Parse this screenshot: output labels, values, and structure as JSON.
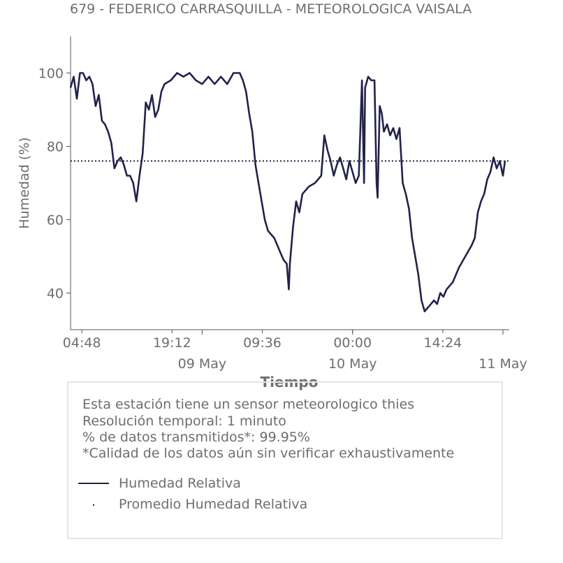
{
  "chart_data": {
    "type": "line",
    "title": "679 - FEDERICO CARRASQUILLA - METEOROLOGICA VAISALA",
    "xlabel": "Tiempo",
    "ylabel": "Humedad (%)",
    "ylim": [
      30,
      110
    ],
    "yticks": [
      40,
      60,
      80,
      100
    ],
    "x_start": "2023-05-08 03:00",
    "x_end": "2023-05-11 01:00",
    "xticks_time": [
      {
        "label": "04:48",
        "t": "2023-05-08 04:48"
      },
      {
        "label": "19:12",
        "t": "2023-05-08 19:12"
      },
      {
        "label": "09:36",
        "t": "2023-05-09 09:36"
      },
      {
        "label": "00:00",
        "t": "2023-05-10 00:00"
      },
      {
        "label": "14:24",
        "t": "2023-05-10 14:24"
      }
    ],
    "xticks_date": [
      {
        "label": "09 May",
        "t": "2023-05-09 00:00"
      },
      {
        "label": "10 May",
        "t": "2023-05-10 00:00"
      },
      {
        "label": "11 May",
        "t": "2023-05-11 00:00"
      }
    ],
    "series": [
      {
        "name": "Humedad Relativa",
        "color": "#22224a",
        "style": "solid",
        "points": [
          [
            "2023-05-08 03:00",
            96
          ],
          [
            "2023-05-08 03:30",
            99
          ],
          [
            "2023-05-08 04:00",
            93
          ],
          [
            "2023-05-08 04:30",
            100
          ],
          [
            "2023-05-08 05:00",
            100
          ],
          [
            "2023-05-08 05:30",
            98
          ],
          [
            "2023-05-08 06:00",
            99
          ],
          [
            "2023-05-08 06:30",
            97
          ],
          [
            "2023-05-08 07:00",
            91
          ],
          [
            "2023-05-08 07:30",
            94
          ],
          [
            "2023-05-08 08:00",
            87
          ],
          [
            "2023-05-08 08:30",
            86
          ],
          [
            "2023-05-08 09:00",
            84
          ],
          [
            "2023-05-08 09:30",
            81
          ],
          [
            "2023-05-08 10:00",
            74
          ],
          [
            "2023-05-08 10:30",
            76
          ],
          [
            "2023-05-08 11:00",
            77
          ],
          [
            "2023-05-08 11:30",
            75
          ],
          [
            "2023-05-08 12:00",
            72
          ],
          [
            "2023-05-08 12:30",
            72
          ],
          [
            "2023-05-08 13:00",
            70
          ],
          [
            "2023-05-08 13:30",
            65
          ],
          [
            "2023-05-08 14:00",
            72
          ],
          [
            "2023-05-08 14:30",
            78
          ],
          [
            "2023-05-08 15:00",
            92
          ],
          [
            "2023-05-08 15:30",
            90
          ],
          [
            "2023-05-08 16:00",
            94
          ],
          [
            "2023-05-08 16:30",
            88
          ],
          [
            "2023-05-08 17:00",
            90
          ],
          [
            "2023-05-08 17:30",
            95
          ],
          [
            "2023-05-08 18:00",
            97
          ],
          [
            "2023-05-08 19:00",
            98
          ],
          [
            "2023-05-08 20:00",
            100
          ],
          [
            "2023-05-08 21:00",
            99
          ],
          [
            "2023-05-08 22:00",
            100
          ],
          [
            "2023-05-08 23:00",
            98
          ],
          [
            "2023-05-09 00:00",
            97
          ],
          [
            "2023-05-09 01:00",
            99
          ],
          [
            "2023-05-09 02:00",
            97
          ],
          [
            "2023-05-09 03:00",
            99
          ],
          [
            "2023-05-09 04:00",
            97
          ],
          [
            "2023-05-09 05:00",
            100
          ],
          [
            "2023-05-09 06:00",
            100
          ],
          [
            "2023-05-09 06:30",
            98
          ],
          [
            "2023-05-09 07:00",
            95
          ],
          [
            "2023-05-09 07:30",
            89
          ],
          [
            "2023-05-09 08:00",
            84
          ],
          [
            "2023-05-09 08:30",
            75
          ],
          [
            "2023-05-09 09:00",
            70
          ],
          [
            "2023-05-09 09:30",
            65
          ],
          [
            "2023-05-09 10:00",
            60
          ],
          [
            "2023-05-09 10:30",
            57
          ],
          [
            "2023-05-09 11:00",
            56
          ],
          [
            "2023-05-09 11:30",
            55
          ],
          [
            "2023-05-09 12:00",
            53
          ],
          [
            "2023-05-09 12:30",
            51
          ],
          [
            "2023-05-09 13:00",
            49
          ],
          [
            "2023-05-09 13:30",
            48
          ],
          [
            "2023-05-09 13:50",
            41
          ],
          [
            "2023-05-09 14:00",
            48
          ],
          [
            "2023-05-09 14:30",
            58
          ],
          [
            "2023-05-09 15:00",
            65
          ],
          [
            "2023-05-09 15:30",
            62
          ],
          [
            "2023-05-09 16:00",
            67
          ],
          [
            "2023-05-09 17:00",
            69
          ],
          [
            "2023-05-09 18:00",
            70
          ],
          [
            "2023-05-09 19:00",
            72
          ],
          [
            "2023-05-09 19:30",
            83
          ],
          [
            "2023-05-09 20:00",
            79
          ],
          [
            "2023-05-09 20:30",
            76
          ],
          [
            "2023-05-09 21:00",
            72
          ],
          [
            "2023-05-09 21:30",
            75
          ],
          [
            "2023-05-09 22:00",
            77
          ],
          [
            "2023-05-09 22:30",
            74
          ],
          [
            "2023-05-09 23:00",
            71
          ],
          [
            "2023-05-09 23:30",
            76
          ],
          [
            "2023-05-10 00:00",
            73
          ],
          [
            "2023-05-10 00:30",
            70
          ],
          [
            "2023-05-10 01:00",
            72
          ],
          [
            "2023-05-10 01:30",
            98
          ],
          [
            "2023-05-10 01:50",
            70
          ],
          [
            "2023-05-10 02:00",
            96
          ],
          [
            "2023-05-10 02:30",
            99
          ],
          [
            "2023-05-10 03:00",
            98
          ],
          [
            "2023-05-10 03:30",
            98
          ],
          [
            "2023-05-10 03:50",
            70
          ],
          [
            "2023-05-10 04:00",
            66
          ],
          [
            "2023-05-10 04:20",
            91
          ],
          [
            "2023-05-10 04:40",
            89
          ],
          [
            "2023-05-10 05:00",
            84
          ],
          [
            "2023-05-10 05:30",
            86
          ],
          [
            "2023-05-10 06:00",
            83
          ],
          [
            "2023-05-10 06:30",
            85
          ],
          [
            "2023-05-10 07:00",
            82
          ],
          [
            "2023-05-10 07:30",
            85
          ],
          [
            "2023-05-10 08:00",
            70
          ],
          [
            "2023-05-10 08:30",
            67
          ],
          [
            "2023-05-10 09:00",
            63
          ],
          [
            "2023-05-10 09:30",
            55
          ],
          [
            "2023-05-10 10:00",
            50
          ],
          [
            "2023-05-10 10:30",
            45
          ],
          [
            "2023-05-10 11:00",
            38
          ],
          [
            "2023-05-10 11:30",
            35
          ],
          [
            "2023-05-10 12:00",
            36
          ],
          [
            "2023-05-10 12:30",
            37
          ],
          [
            "2023-05-10 13:00",
            38
          ],
          [
            "2023-05-10 13:30",
            37
          ],
          [
            "2023-05-10 14:00",
            40
          ],
          [
            "2023-05-10 14:30",
            39
          ],
          [
            "2023-05-10 15:00",
            41
          ],
          [
            "2023-05-10 16:00",
            43
          ],
          [
            "2023-05-10 17:00",
            47
          ],
          [
            "2023-05-10 18:00",
            50
          ],
          [
            "2023-05-10 19:00",
            53
          ],
          [
            "2023-05-10 19:30",
            55
          ],
          [
            "2023-05-10 20:00",
            62
          ],
          [
            "2023-05-10 20:30",
            65
          ],
          [
            "2023-05-10 21:00",
            67
          ],
          [
            "2023-05-10 21:30",
            71
          ],
          [
            "2023-05-10 22:00",
            73
          ],
          [
            "2023-05-10 22:30",
            77
          ],
          [
            "2023-05-10 23:00",
            74
          ],
          [
            "2023-05-10 23:30",
            76
          ],
          [
            "2023-05-11 00:00",
            72
          ],
          [
            "2023-05-11 00:20",
            76
          ]
        ]
      },
      {
        "name": "Promedio Humedad Relativa",
        "color": "#22224a",
        "style": "dotted",
        "constant": 76
      }
    ],
    "grid": false,
    "legend_placement": "bottom"
  },
  "info": {
    "lines": [
      "Esta estación tiene un sensor meteorologico thies",
      "Resolución temporal: 1 minuto",
      "% de datos transmitidos*: 99.95%",
      "*Calidad de los datos aún sin verificar exhaustivamente"
    ]
  }
}
